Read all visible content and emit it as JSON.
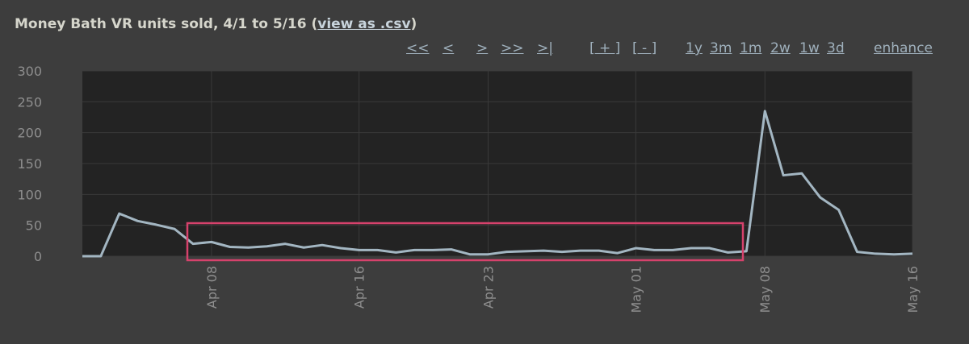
{
  "chart_data": {
    "type": "line",
    "title": "Money Bath VR units sold, 4/1 to 5/16 (",
    "title_link": "view as .csv",
    "title_end": ")",
    "nav": [
      "<<",
      "<",
      ">",
      ">>",
      ">|",
      "[ + ]",
      "[ - ]",
      "1y",
      "3m",
      "1m",
      "2w",
      "1w",
      "3d",
      "enhance"
    ],
    "x": [
      "Apr 01",
      "Apr 02",
      "Apr 03",
      "Apr 04",
      "Apr 05",
      "Apr 06",
      "Apr 07",
      "Apr 08",
      "Apr 09",
      "Apr 10",
      "Apr 11",
      "Apr 12",
      "Apr 13",
      "Apr 14",
      "Apr 15",
      "Apr 16",
      "Apr 17",
      "Apr 18",
      "Apr 19",
      "Apr 20",
      "Apr 21",
      "Apr 22",
      "Apr 23",
      "Apr 24",
      "Apr 25",
      "Apr 26",
      "Apr 27",
      "Apr 28",
      "Apr 29",
      "Apr 30",
      "May 01",
      "May 02",
      "May 03",
      "May 04",
      "May 05",
      "May 06",
      "May 07",
      "May 08",
      "May 09",
      "May 10",
      "May 11",
      "May 12",
      "May 13",
      "May 14",
      "May 15",
      "May 16"
    ],
    "series": [
      {
        "name": "units sold",
        "color": "#a3b6c2",
        "values": [
          0,
          0,
          69,
          57,
          51,
          44,
          20,
          23,
          15,
          14,
          16,
          20,
          14,
          18,
          13,
          10,
          10,
          6,
          10,
          10,
          11,
          3,
          3,
          7,
          8,
          9,
          7,
          9,
          9,
          5,
          13,
          10,
          10,
          13,
          13,
          6,
          8,
          235,
          131,
          134,
          95,
          75,
          7,
          4,
          3,
          4
        ]
      }
    ],
    "ylim": [
      0,
      300
    ],
    "yticks": [
      0,
      50,
      100,
      150,
      200,
      250,
      300
    ],
    "xticks": [
      "Apr 08",
      "Apr 16",
      "Apr 23",
      "May 01",
      "May 08",
      "May 16"
    ],
    "grid": true
  }
}
